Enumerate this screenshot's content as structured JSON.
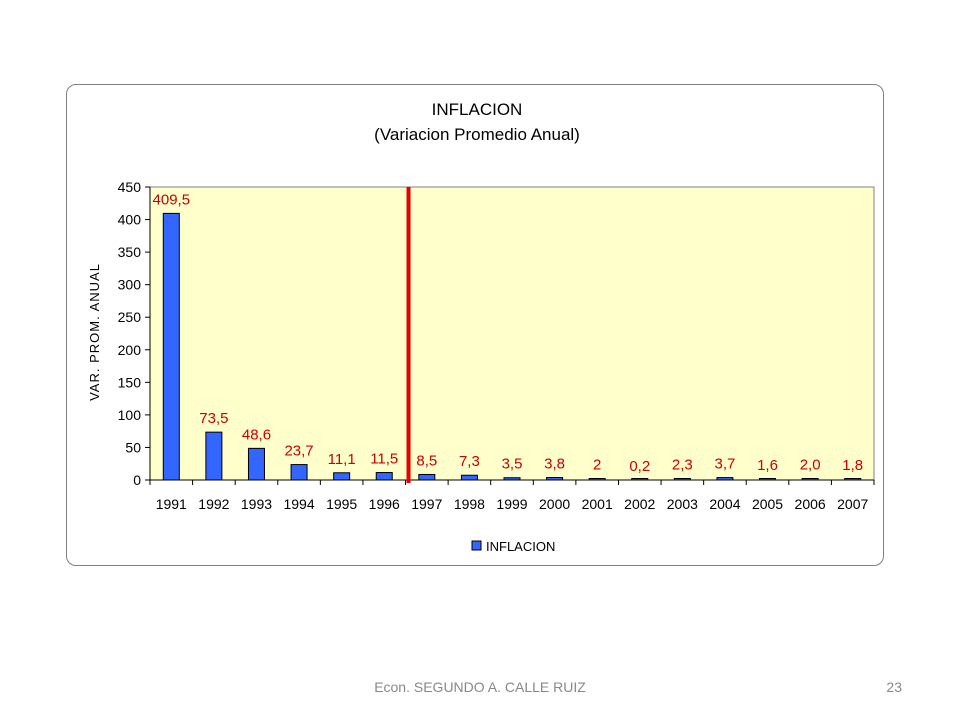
{
  "chart_data": {
    "type": "bar",
    "title": "INFLACION",
    "subtitle": "(Variacion Promedio Anual)",
    "ylabel": "VAR. PROM. ANUAL",
    "xlabel": "",
    "ylim": [
      0,
      450
    ],
    "yticks": [
      0,
      50,
      100,
      150,
      200,
      250,
      300,
      350,
      400,
      450
    ],
    "categories": [
      "1991",
      "1992",
      "1993",
      "1994",
      "1995",
      "1996",
      "1997",
      "1998",
      "1999",
      "2000",
      "2001",
      "2002",
      "2003",
      "2004",
      "2005",
      "2006",
      "2007"
    ],
    "series": [
      {
        "name": "INFLACION",
        "values": [
          409.5,
          73.5,
          48.6,
          23.7,
          11.1,
          11.5,
          8.5,
          7.3,
          3.5,
          3.8,
          2,
          0.2,
          2.3,
          3.7,
          1.6,
          2.0,
          1.8
        ],
        "labels": [
          "409,5",
          "73,5",
          "48,6",
          "23,7",
          "11,1",
          "11,5",
          "8,5",
          "7,3",
          "3,5",
          "3,8",
          "2",
          "0,2",
          "2,3",
          "3,7",
          "1,6",
          "2,0",
          "1,8"
        ]
      }
    ],
    "legend": "bottom",
    "grid": false,
    "marker_line": {
      "between": [
        "1996",
        "1997"
      ],
      "color": "#e60000"
    },
    "colors": {
      "plot_bg": "#ffffcc",
      "bar": "#3366ff",
      "bar_border": "#000000",
      "data_label": "#cc0000"
    }
  },
  "footer": {
    "author": "Econ. SEGUNDO A. CALLE RUIZ",
    "page": "23"
  }
}
